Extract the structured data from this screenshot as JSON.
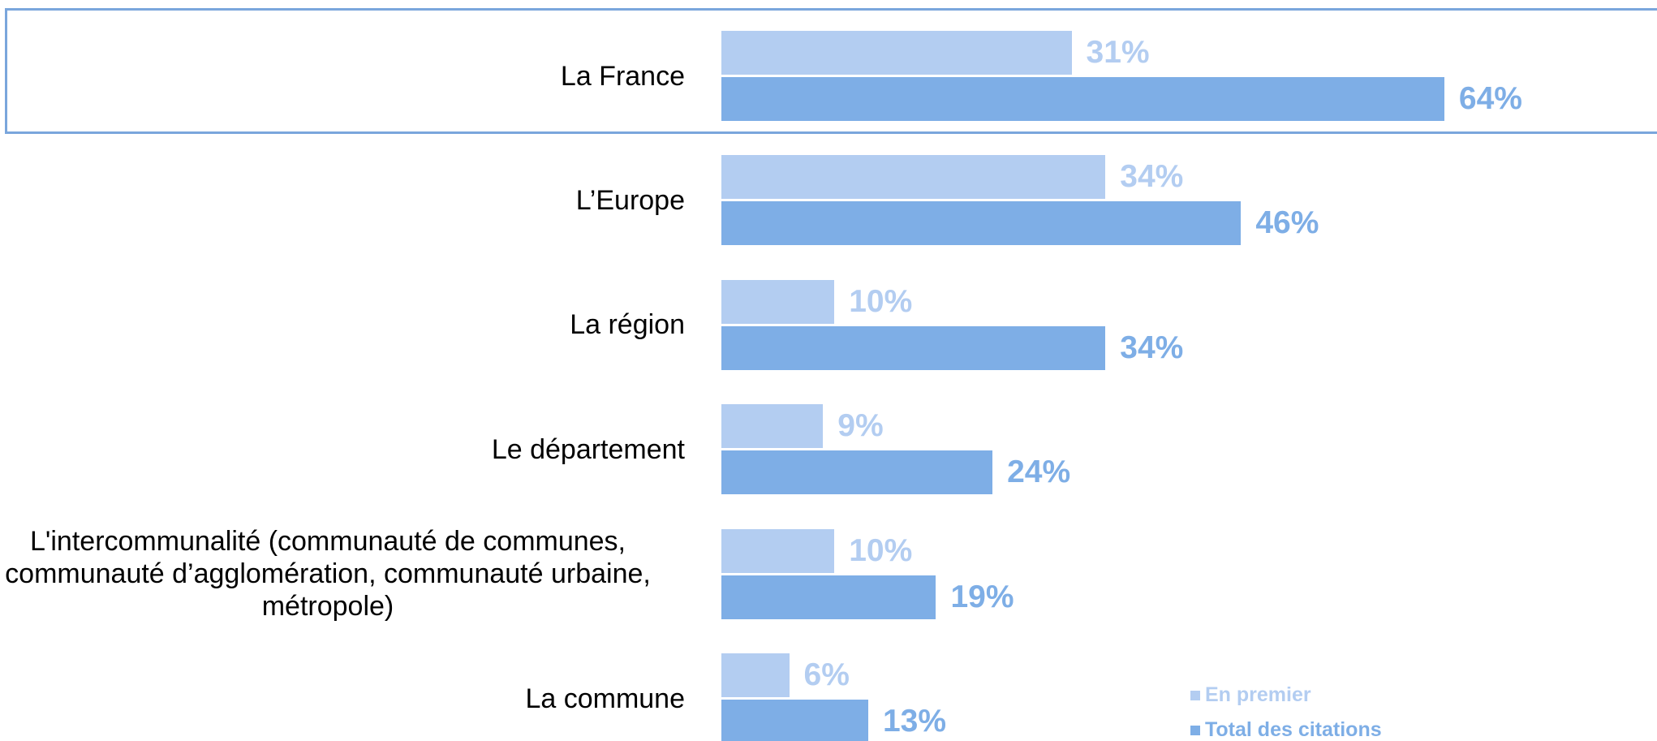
{
  "chart_data": {
    "type": "barh",
    "categories": [
      "La France",
      "L’Europe",
      "La région",
      "Le département",
      "L'intercommunalité (communauté de communes, communauté d’agglomération, communauté urbaine, métropole)",
      "La commune"
    ],
    "series": [
      {
        "name": "En premier",
        "color": "#b3cdf1",
        "values": [
          31,
          34,
          10,
          9,
          10,
          6
        ],
        "value_labels": [
          "31%",
          "34%",
          "10%",
          "9%",
          "10%",
          "6%"
        ]
      },
      {
        "name": "Total des citations",
        "color": "#7eaee6",
        "values": [
          64,
          46,
          34,
          24,
          19,
          13
        ],
        "value_labels": [
          "64%",
          "46%",
          "34%",
          "24%",
          "19%",
          "13%"
        ]
      }
    ]
  }
}
